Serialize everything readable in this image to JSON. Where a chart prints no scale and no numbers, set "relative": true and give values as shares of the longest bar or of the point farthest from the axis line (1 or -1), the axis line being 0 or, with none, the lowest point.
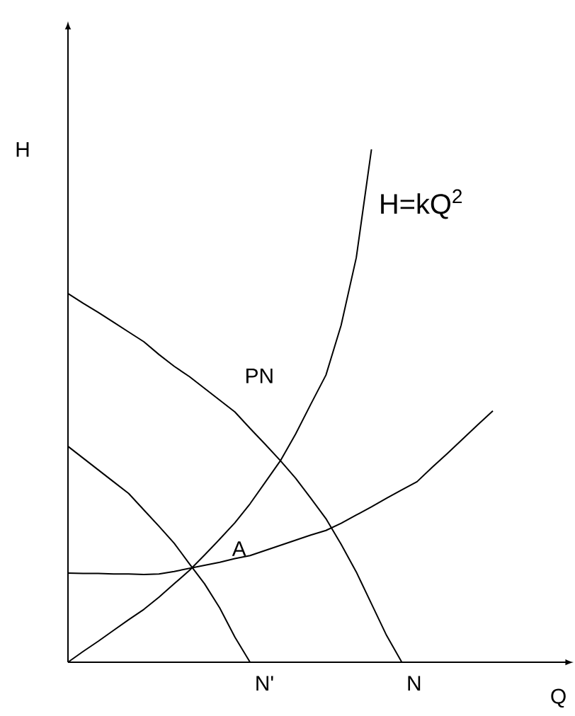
{
  "chart_data": {
    "type": "line",
    "relative": true,
    "xlabel": "Q",
    "ylabel": "H",
    "legend": false,
    "categories": [
      null,
      null,
      null,
      null,
      null,
      null,
      null,
      null,
      null,
      null,
      null,
      null,
      null,
      null,
      null,
      null,
      null,
      null,
      null,
      null,
      null,
      null,
      null,
      null,
      null,
      null,
      null,
      null,
      null
    ],
    "series": [
      {
        "name": "H=kQ$^{2}$",
        "color": "#000000",
        "values": [
          0,
          0.021,
          0.041,
          0.062,
          0.083,
          0.103,
          0.127,
          0.153,
          0.179,
          0.209,
          0.24,
          0.272,
          0.309,
          0.351,
          0.393,
          0.445,
          0.503,
          0.56,
          0.657,
          0.789,
          1.0,
          null,
          null,
          null,
          null,
          null,
          null,
          null,
          null
        ]
      },
      {
        "color": "#000000",
        "values": [
          0.719,
          0.7,
          0.682,
          0.663,
          0.644,
          0.625,
          0.6,
          0.577,
          0.557,
          0.534,
          0.511,
          0.488,
          0.456,
          0.425,
          0.393,
          0.359,
          0.32,
          0.28,
          0.23,
          0.176,
          0.114,
          0.052,
          0,
          null,
          null,
          null,
          null,
          null,
          null
        ]
      },
      {
        "color": "#000000",
        "values": [
          0.421,
          0.398,
          0.375,
          0.352,
          0.329,
          0.297,
          0.265,
          0.232,
          0.192,
          0.153,
          0.106,
          0.049,
          0,
          null,
          null,
          null,
          null,
          null,
          null,
          null,
          null,
          null,
          null,
          null,
          null,
          null,
          null,
          null,
          null
        ]
      },
      {
        "color": "#000000",
        "values": [
          0.174,
          0.173,
          0.173,
          0.172,
          0.172,
          0.171,
          0.172,
          0.177,
          0.183,
          0.189,
          0.195,
          0.202,
          0.208,
          0.218,
          0.228,
          0.238,
          0.248,
          0.257,
          0.271,
          0.287,
          0.303,
          0.32,
          0.336,
          0.352,
          0.38,
          0.407,
          0.435,
          0.463,
          0.49
        ]
      }
    ],
    "annotations": [
      "PN",
      "A",
      "N'",
      "N"
    ]
  }
}
